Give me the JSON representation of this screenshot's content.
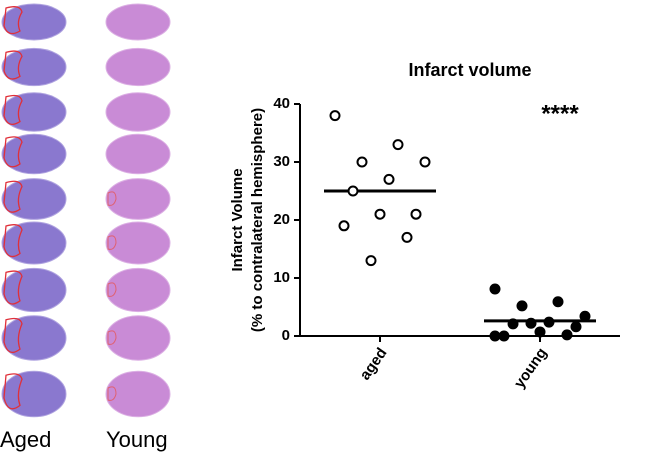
{
  "panel_labels": [
    "Aged",
    "Young"
  ],
  "chart_data": {
    "type": "dot",
    "title": "Infarct volume",
    "y_label": [
      "Infarct Volume",
      "(% to contralateral hemisphere)"
    ],
    "categories": [
      "aged",
      "young"
    ],
    "points": [
      [
        38,
        33,
        30,
        30,
        27,
        25,
        21,
        21,
        19,
        17,
        13
      ],
      [
        8.1,
        5.9,
        5.2,
        3.4,
        2.4,
        2.1,
        1.6,
        0.7,
        0,
        0.2,
        2.2,
        0
      ]
    ],
    "means": [
      25,
      2.6
    ],
    "markers": [
      "open",
      "filled"
    ],
    "color": "#000000",
    "annotation": "****",
    "ylim": [
      0,
      40
    ],
    "yticks": [
      0,
      10,
      20,
      30,
      40
    ]
  }
}
